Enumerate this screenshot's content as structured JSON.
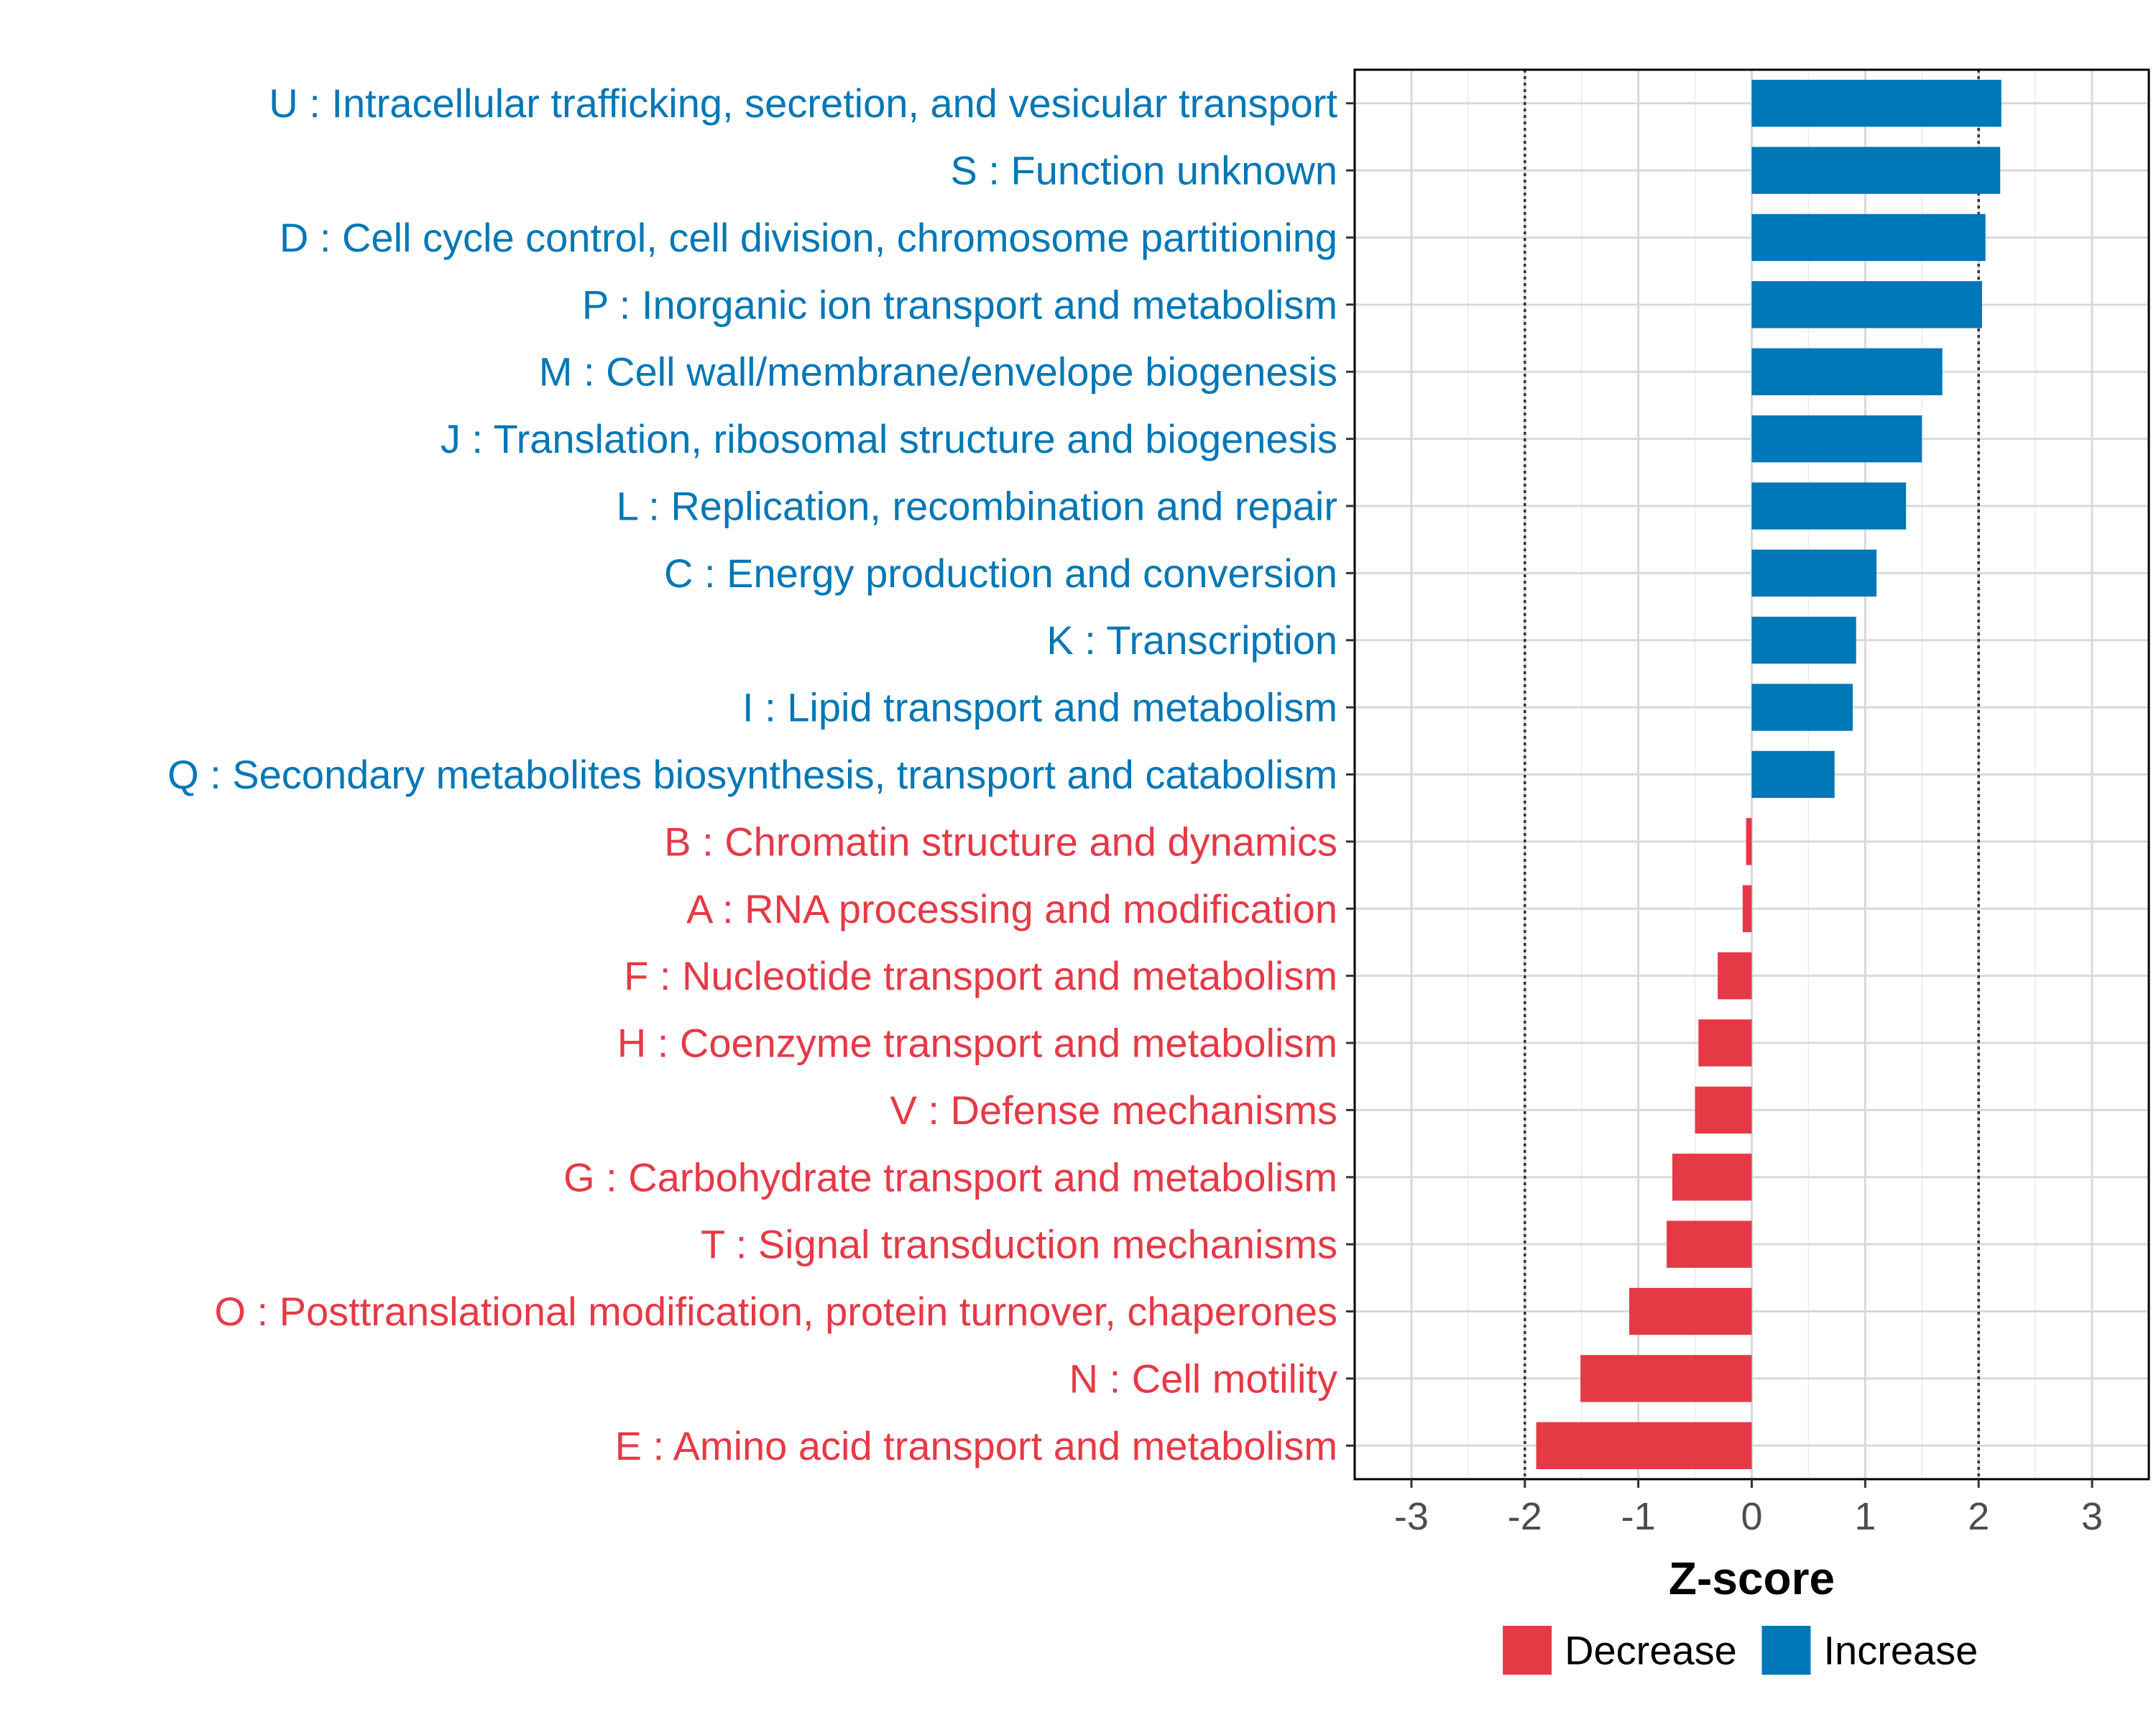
{
  "chart_data": {
    "type": "bar",
    "orientation": "horizontal",
    "title": "",
    "xlabel": "Z-score",
    "ylabel": "",
    "xlim": [
      -3.5,
      3.5
    ],
    "xticks": [
      -3,
      -2,
      -1,
      0,
      1,
      2,
      3
    ],
    "xtick_labels": [
      "-3",
      "-2",
      "-1",
      "0",
      "1",
      "2",
      "3"
    ],
    "threshold_lines": [
      -2,
      2
    ],
    "grid": true,
    "legend_position": "bottom",
    "categories": [
      "U : Intracellular trafficking, secretion, and vesicular transport",
      "S : Function unknown",
      "D : Cell cycle control, cell division, chromosome partitioning",
      "P : Inorganic ion transport and metabolism",
      "M : Cell wall/membrane/envelope biogenesis",
      "J : Translation, ribosomal structure and biogenesis",
      "L : Replication, recombination and repair",
      "C : Energy production and conversion",
      "K : Transcription",
      "I : Lipid transport and metabolism",
      "Q : Secondary metabolites biosynthesis, transport and catabolism",
      "B : Chromatin structure and dynamics",
      "A : RNA processing and modification",
      "F : Nucleotide transport and metabolism",
      "H : Coenzyme transport and metabolism",
      "V : Defense mechanisms",
      "G : Carbohydrate transport and metabolism",
      "T : Signal transduction mechanisms",
      "O : Posttranslational modification, protein turnover, chaperones",
      "N : Cell motility",
      "E : Amino acid transport and metabolism"
    ],
    "values": [
      2.2,
      2.19,
      2.06,
      2.03,
      1.68,
      1.5,
      1.36,
      1.1,
      0.92,
      0.89,
      0.73,
      -0.05,
      -0.08,
      -0.3,
      -0.47,
      -0.5,
      -0.7,
      -0.75,
      -1.08,
      -1.51,
      -1.9
    ],
    "groups": [
      "Increase",
      "Increase",
      "Increase",
      "Increase",
      "Increase",
      "Increase",
      "Increase",
      "Increase",
      "Increase",
      "Increase",
      "Increase",
      "Decrease",
      "Decrease",
      "Decrease",
      "Decrease",
      "Decrease",
      "Decrease",
      "Decrease",
      "Decrease",
      "Decrease",
      "Decrease"
    ],
    "legend": [
      {
        "name": "Decrease",
        "color": "#E63946"
      },
      {
        "name": "Increase",
        "color": "#0077B6"
      }
    ],
    "colors": {
      "Increase": "#0077B6",
      "Decrease": "#E63946"
    }
  }
}
